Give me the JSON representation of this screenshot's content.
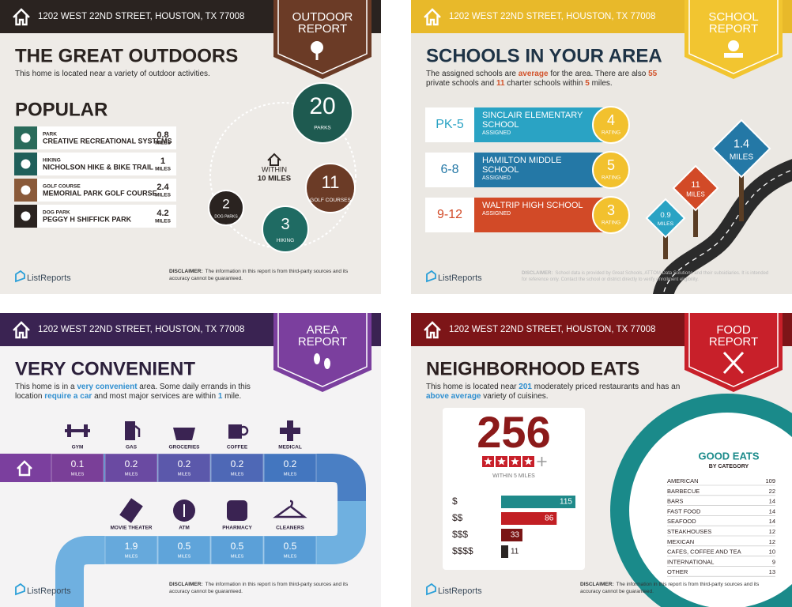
{
  "outdoor": {
    "address": "1202 WEST 22ND STREET, HOUSTON, TX 77008",
    "badge": [
      "OUTDOOR",
      "REPORT"
    ],
    "title": "THE GREAT OUTDOORS",
    "intro": [
      "This home is located near a variety of outdoor activities."
    ],
    "section": "POPULAR",
    "places": [
      {
        "type": "PARK",
        "name": "CREATIVE RECREATIONAL SYSTEMS",
        "distance": 0.8,
        "unit": "MILES"
      },
      {
        "type": "HIKING",
        "name": "NICHOLSON HIKE & BIKE TRAIL",
        "distance": 1,
        "unit": "MILES"
      },
      {
        "type": "GOLF COURSE",
        "name": "MEMORIAL PARK GOLF COURSE",
        "distance": 2.4,
        "unit": "MILES"
      },
      {
        "type": "DOG PARK",
        "name": "PEGGY H SHIFFICK PARK",
        "distance": 4.2,
        "unit": "MILES"
      }
    ],
    "radius": [
      "WITHIN",
      "10 MILES"
    ],
    "counts": [
      {
        "value": 20,
        "label": "PARKS"
      },
      {
        "value": 11,
        "label": "GOLF COURSES"
      },
      {
        "value": 3,
        "label": "HIKING"
      },
      {
        "value": 2,
        "label": "DOG PARKS"
      }
    ],
    "brand": "ListReports",
    "disclaimer_label": "DISCLAIMER:",
    "disclaimer": "The information in this report is from third-party sources and its accuracy cannot be guaranteed."
  },
  "schools": {
    "address": "1202 WEST 22ND STREET, HOUSTON, TX 77008",
    "badge": [
      "SCHOOL",
      "REPORT"
    ],
    "title": "SCHOOLS IN YOUR AREA",
    "intro": [
      "The assigned schools are ",
      "average",
      " for the area. There are also ",
      "55",
      " private schools and ",
      "11",
      " charter schools within ",
      "5",
      " miles."
    ],
    "list": [
      {
        "grades": "PK-5",
        "name": "SINCLAIR ELEMENTARY SCHOOL",
        "status": "ASSIGNED",
        "rating": 4,
        "rating_label": "RATING"
      },
      {
        "grades": "6-8",
        "name": "HAMILTON MIDDLE SCHOOL",
        "status": "ASSIGNED",
        "rating": 5,
        "rating_label": "RATING"
      },
      {
        "grades": "9-12",
        "name": "WALTRIP HIGH SCHOOL",
        "status": "ASSIGNED",
        "rating": 3,
        "rating_label": "RATING"
      }
    ],
    "signs": [
      {
        "value": 1.4,
        "unit": "MILES"
      },
      {
        "value": 11,
        "unit": "MILES"
      },
      {
        "value": 0.9,
        "unit": "MILES"
      }
    ],
    "brand": "ListReports",
    "disclaimer_label": "DISCLAIMER:",
    "disclaimer": "School data is provided by Great Schools, ATTOM Data Solutions and their subsidiaries. It is intended for reference only. Contact the school or district directly to verify enrollment eligibility."
  },
  "convenience": {
    "address": "1202 WEST 22ND STREET, HOUSTON, TX 77008",
    "badge": [
      "AREA",
      "REPORT"
    ],
    "title": "VERY CONVENIENT",
    "intro": [
      "This home is in a ",
      "very convenient",
      " area. Some daily errands in this location ",
      "require a car",
      " and most major services are within ",
      "1",
      " mile."
    ],
    "services": [
      {
        "name": "GYM",
        "distance": 0.1,
        "unit": "MILES"
      },
      {
        "name": "GAS",
        "distance": 0.2,
        "unit": "MILES"
      },
      {
        "name": "GROCERIES",
        "distance": 0.2,
        "unit": "MILES"
      },
      {
        "name": "COFFEE",
        "distance": 0.2,
        "unit": "MILES"
      },
      {
        "name": "MEDICAL",
        "distance": 0.2,
        "unit": "MILES"
      },
      {
        "name": "MOVIE THEATER",
        "distance": 1.9,
        "unit": "MILES"
      },
      {
        "name": "ATM",
        "distance": 0.5,
        "unit": "MILES"
      },
      {
        "name": "PHARMACY",
        "distance": 0.5,
        "unit": "MILES"
      },
      {
        "name": "CLEANERS",
        "distance": 0.5,
        "unit": "MILES"
      }
    ],
    "brand": "ListReports",
    "disclaimer_label": "DISCLAIMER:",
    "disclaimer": "The information in this report is from third-party sources and its accuracy cannot be guaranteed."
  },
  "eats": {
    "address": "1202 WEST 22ND STREET, HOUSTON, TX 77008",
    "badge": [
      "FOOD",
      "REPORT"
    ],
    "title": "NEIGHBORHOOD EATS",
    "intro": [
      "This home is located near ",
      "201",
      " moderately priced restaurants and has an ",
      "above average",
      " variety of cuisines."
    ],
    "total": 256,
    "total_label": "WITHIN 5 MILES",
    "prices": [
      {
        "label": "$",
        "count": 115
      },
      {
        "label": "$$",
        "count": 86
      },
      {
        "label": "$$$",
        "count": 33
      },
      {
        "label": "$$$$",
        "count": 11
      }
    ],
    "categories_title": "GOOD EATS",
    "categories_subtitle": "BY CATEGORY",
    "categories": [
      {
        "name": "AMERICAN",
        "count": 109
      },
      {
        "name": "BARBECUE",
        "count": 22
      },
      {
        "name": "BARS",
        "count": 14
      },
      {
        "name": "FAST FOOD",
        "count": 14
      },
      {
        "name": "SEAFOOD",
        "count": 14
      },
      {
        "name": "STEAKHOUSES",
        "count": 12
      },
      {
        "name": "MEXICAN",
        "count": 12
      },
      {
        "name": "CAFES, COFFEE AND TEA",
        "count": 10
      },
      {
        "name": "INTERNATIONAL",
        "count": 9
      },
      {
        "name": "OTHER",
        "count": 13
      }
    ],
    "brand": "ListReports",
    "disclaimer_label": "DISCLAIMER:",
    "disclaimer": "The information in this report is from third-party sources and its accuracy cannot be guaranteed."
  }
}
